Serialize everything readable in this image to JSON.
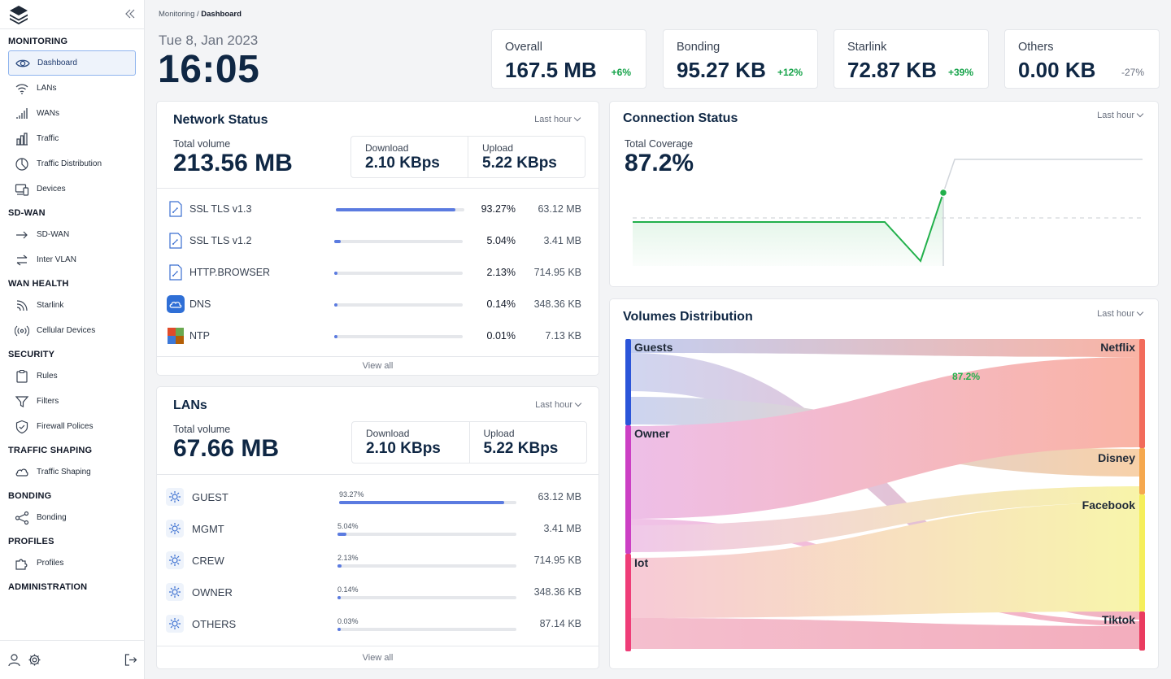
{
  "breadcrumb": {
    "parent": "Monitoring",
    "sep": " / ",
    "current": "Dashboard"
  },
  "date": "Tue 8, Jan 2023",
  "time": "16:05",
  "sidebar": {
    "sections": [
      {
        "title": "MONITORING",
        "items": [
          {
            "label": "Dashboard",
            "icon": "eye-icon",
            "active": true
          },
          {
            "label": "LANs",
            "icon": "wifi-icon"
          },
          {
            "label": "WANs",
            "icon": "signal-bars-icon"
          },
          {
            "label": "Traffic",
            "icon": "bar-chart-icon"
          },
          {
            "label": "Traffic Distribution",
            "icon": "pie-chart-icon"
          },
          {
            "label": "Devices",
            "icon": "devices-icon"
          }
        ]
      },
      {
        "title": "SD-WAN",
        "items": [
          {
            "label": "SD-WAN",
            "icon": "arrow-right-icon"
          },
          {
            "label": "Inter VLAN",
            "icon": "swap-icon"
          }
        ]
      },
      {
        "title": "WAN HEALTH",
        "items": [
          {
            "label": "Starlink",
            "icon": "rss-icon"
          },
          {
            "label": "Cellular Devices",
            "icon": "broadcast-icon"
          }
        ]
      },
      {
        "title": "SECURITY",
        "items": [
          {
            "label": "Rules",
            "icon": "clipboard-icon"
          },
          {
            "label": "Filters",
            "icon": "filter-icon"
          },
          {
            "label": "Firewall Polices",
            "icon": "shield-icon"
          }
        ]
      },
      {
        "title": "TRAFFIC SHAPING",
        "items": [
          {
            "label": "Traffic Shaping",
            "icon": "shaping-icon"
          }
        ]
      },
      {
        "title": "BONDING",
        "items": [
          {
            "label": "Bonding",
            "icon": "share-icon"
          }
        ]
      },
      {
        "title": "PROFILES",
        "items": [
          {
            "label": "Profiles",
            "icon": "puzzle-icon"
          }
        ]
      },
      {
        "title": "ADMINISTRATION",
        "items": []
      }
    ]
  },
  "stats": [
    {
      "label": "Overall",
      "value": "167.5 MB",
      "change": "+6%",
      "positive": true
    },
    {
      "label": "Bonding",
      "value": "95.27 KB",
      "change": "+12%",
      "positive": true
    },
    {
      "label": "Starlink",
      "value": "72.87 KB",
      "change": "+39%",
      "positive": true
    },
    {
      "label": "Others",
      "value": "0.00 KB",
      "change": "-27%",
      "positive": false
    }
  ],
  "network_status": {
    "title": "Network Status",
    "range": "Last hour",
    "total_label": "Total volume",
    "total_value": "213.56 MB",
    "download_label": "Download",
    "download_value": "2.10 KBps",
    "upload_label": "Upload",
    "upload_value": "5.22 KBps",
    "rows": [
      {
        "name": "SSL TLS v1.3",
        "pct": "93.27%",
        "fraction": 0.9327,
        "size": "63.12 MB",
        "icon": "file-icon"
      },
      {
        "name": "SSL TLS v1.2",
        "pct": "5.04%",
        "fraction": 0.0504,
        "size": "3.41 MB",
        "icon": "file-icon"
      },
      {
        "name": "HTTP.BROWSER",
        "pct": "2.13%",
        "fraction": 0.0213,
        "size": "714.95 KB",
        "icon": "file-icon"
      },
      {
        "name": "DNS",
        "pct": "0.14%",
        "fraction": 0.0014,
        "size": "348.36 KB",
        "icon": "cloud-icon"
      },
      {
        "name": "NTP",
        "pct": "0.01%",
        "fraction": 0.0001,
        "size": "7.13 KB",
        "icon": "ntp-icon"
      }
    ],
    "view_all": "View all"
  },
  "lans": {
    "title": "LANs",
    "range": "Last hour",
    "total_label": "Total volume",
    "total_value": "67.66 MB",
    "download_label": "Download",
    "download_value": "2.10 KBps",
    "upload_label": "Upload",
    "upload_value": "5.22 KBps",
    "rows": [
      {
        "name": "GUEST",
        "pct": "93.27%",
        "fraction": 0.9327,
        "size": "63.12 MB"
      },
      {
        "name": "MGMT",
        "pct": "5.04%",
        "fraction": 0.0504,
        "size": "3.41 MB"
      },
      {
        "name": "CREW",
        "pct": "2.13%",
        "fraction": 0.0213,
        "size": "714.95 KB"
      },
      {
        "name": "OWNER",
        "pct": "0.14%",
        "fraction": 0.0014,
        "size": "348.36 KB"
      },
      {
        "name": "OTHERS",
        "pct": "0.03%",
        "fraction": 0.0003,
        "size": "87.14 KB"
      }
    ],
    "view_all": "View all"
  },
  "connection_status": {
    "title": "Connection Status",
    "range": "Last hour",
    "coverage_label": "Total Coverage",
    "coverage_value": "87.2%"
  },
  "volumes_distribution": {
    "title": "Volumes Distribution",
    "range": "Last hour",
    "sources": [
      "Guests",
      "Owner",
      "Iot"
    ],
    "targets": [
      "Netflix",
      "Disney",
      "Facebook",
      "Tiktok"
    ],
    "annotation": "87.2%"
  },
  "colors": {
    "accent": "#5b7be0",
    "positive": "#16a34a",
    "navy": "#0f2744",
    "line": "#22b04b"
  }
}
